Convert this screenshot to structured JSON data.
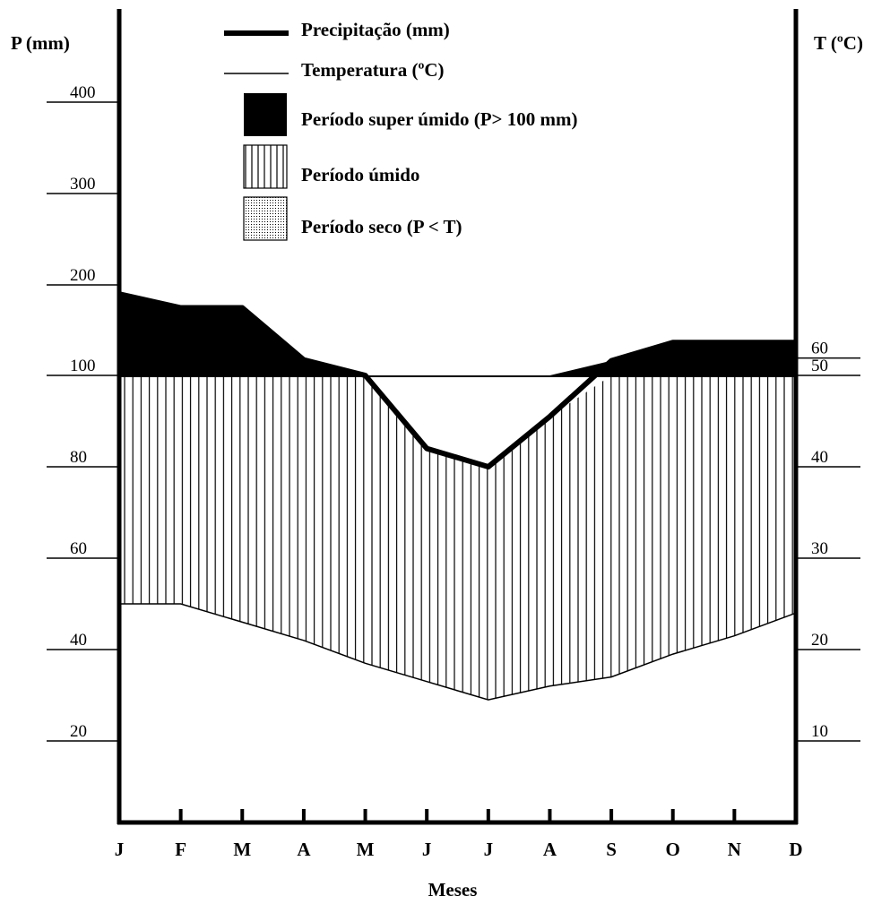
{
  "chart_data": {
    "type": "line",
    "title": "",
    "xlabel": "Meses",
    "ylabel_left": "P (mm)",
    "ylabel_right": "T (ºC)",
    "categories": [
      "J",
      "F",
      "M",
      "A",
      "M",
      "J",
      "J",
      "A",
      "S",
      "O",
      "N",
      "D"
    ],
    "series": [
      {
        "name": "Precipitação (mm)",
        "axis": "left",
        "line_style": "thick",
        "values": [
          190,
          175,
          175,
          118,
          100,
          84,
          80,
          91,
          117,
          137,
          137,
          137
        ]
      },
      {
        "name": "Temperatura (ºC)",
        "axis": "right",
        "line_style": "thin",
        "values": [
          25,
          25,
          23,
          21,
          18.5,
          16.5,
          14.5,
          16,
          17,
          19.5,
          21.5,
          24
        ]
      }
    ],
    "left_axis": {
      "ticks": [
        "20",
        "40",
        "60",
        "80",
        "100",
        "200",
        "300",
        "400"
      ],
      "scale": "broken: 0–100 linear, 100–400 compressed"
    },
    "right_axis": {
      "ticks": [
        "10",
        "20",
        "30",
        "40",
        "50",
        "60"
      ],
      "scale": "linear, 10 ºC = 20 mm"
    },
    "legend": {
      "placement": "top-center",
      "items": [
        {
          "label": "Precipitação (mm)",
          "symbol": "thick-line"
        },
        {
          "label": "Temperatura (ºC)",
          "symbol": "thin-line"
        },
        {
          "label": "Período super úmido  (P> 100 mm)",
          "symbol": "solid-black"
        },
        {
          "label": "Período úmido",
          "symbol": "vertical-hatch"
        },
        {
          "label": "Período seco (P < T)",
          "symbol": "dotted"
        }
      ]
    },
    "shaded_regions": [
      {
        "name": "Período super úmido",
        "between": "100 mm and precipitation",
        "fill": "solid-black"
      },
      {
        "name": "Período úmido",
        "between": "temperature and min(precipitation, 100 mm)",
        "fill": "vertical-hatch"
      }
    ],
    "grid": false,
    "colors": {
      "ink": "#000000",
      "background": "#ffffff"
    }
  }
}
